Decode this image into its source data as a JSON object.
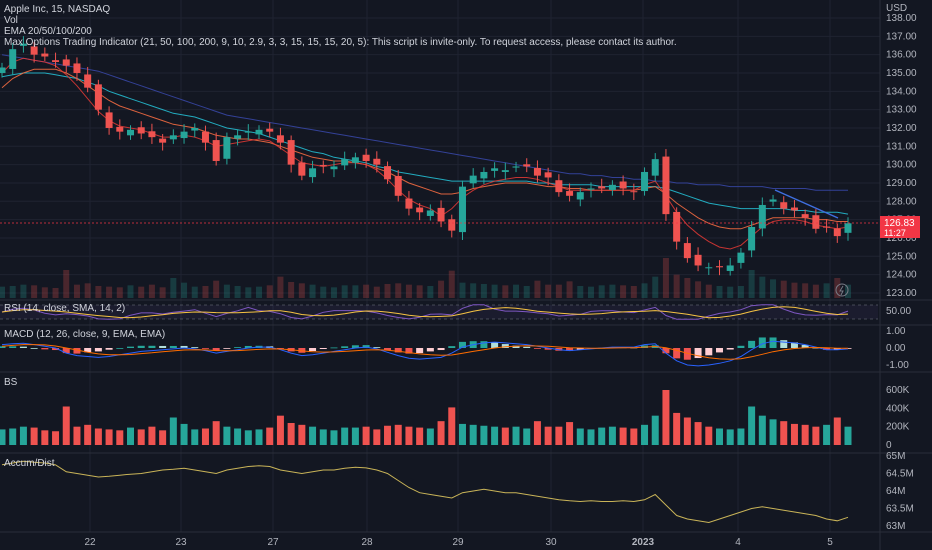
{
  "header": {
    "symbol_line": "Apple Inc, 15, NASDAQ",
    "vol_label": "Vol",
    "ema_label": "EMA 20/50/100/200",
    "indicator_label": "Max Options Trading Indicator (21, 50, 100, 200, 9, 10, 2.9, 3, 3, 15, 15, 15, 20, 5): This script is invite-only. To request access, please contact its author."
  },
  "price_axis": {
    "currency": "USD",
    "ticks": [
      "138.00",
      "137.00",
      "136.00",
      "135.00",
      "134.00",
      "133.00",
      "132.00",
      "131.00",
      "130.00",
      "129.00",
      "128.00",
      "127.00",
      "126.00",
      "125.00",
      "124.00",
      "123.00"
    ],
    "last_price": "126.83",
    "countdown": "11:27"
  },
  "panes": {
    "rsi_label": "RSI (14, close, SMA, 14, 2)",
    "rsi_tick": "50.00",
    "macd_label": "MACD (12, 26, close, 9, EMA, EMA)",
    "macd_ticks": [
      "1.00",
      "0.00",
      "-1.00"
    ],
    "bs_label": "BS",
    "bs_ticks": [
      "600K",
      "400K",
      "200K",
      "0"
    ],
    "ad_label": "Accum/Dist",
    "ad_ticks": [
      "65M",
      "64.5M",
      "64M",
      "63.5M",
      "63M"
    ]
  },
  "time_axis": [
    "22",
    "23",
    "27",
    "28",
    "29",
    "30",
    "2023",
    "4",
    "5"
  ],
  "colors": {
    "up": "#26a69a",
    "down": "#ef5350",
    "ema20": "#e53935",
    "ema50": "#ff7043",
    "ema100": "#26c6da",
    "ema200": "#3949ab",
    "price_tag": "#f23645",
    "macd_line": "#2962ff",
    "signal_line": "#ff6d00",
    "rsi_line": "#7e57c2",
    "ad_line": "#c9b458"
  },
  "chart_data": {
    "type": "candlestick",
    "symbol": "AAPL",
    "interval": "15",
    "ylim": [
      122.7,
      138.1
    ],
    "x": [
      "22",
      "23",
      "27",
      "28",
      "29",
      "30",
      "2023",
      "4",
      "5"
    ],
    "close_path": [
      135.3,
      136.3,
      136.6,
      136.0,
      135.9,
      135.6,
      135.4,
      135.0,
      134.2,
      133.0,
      132.0,
      131.8,
      131.9,
      131.7,
      131.5,
      131.2,
      131.6,
      131.8,
      132.0,
      131.2,
      130.2,
      131.5,
      131.6,
      131.8,
      131.9,
      131.8,
      131.2,
      130.0,
      129.4,
      129.8,
      129.9,
      129.9,
      130.3,
      130.4,
      130.2,
      130.0,
      129.2,
      128.3,
      127.6,
      127.4,
      127.5,
      126.9,
      126.4,
      128.8,
      129.4,
      129.6,
      129.8,
      129.7,
      129.9,
      129.9,
      129.4,
      129.3,
      128.5,
      128.3,
      128.5,
      128.7,
      128.7,
      128.9,
      128.7,
      128.5,
      129.6,
      130.3,
      127.3,
      125.8,
      124.9,
      124.5,
      124.4,
      124.4,
      124.5,
      125.2,
      126.6,
      127.8,
      128.1,
      127.6,
      127.5,
      127.1,
      126.5,
      126.6,
      126.1,
      126.8
    ],
    "ema20_path": [
      135.0,
      135.6,
      135.8,
      135.7,
      135.6,
      135.4,
      134.9,
      134.3,
      133.6,
      132.9,
      132.4,
      132.1,
      132.0,
      131.9,
      131.7,
      131.5,
      131.5,
      131.6,
      131.5,
      131.3,
      131.0,
      131.1,
      131.2,
      131.3,
      131.4,
      131.3,
      130.9,
      130.5,
      130.1,
      130.0,
      129.9,
      130.0,
      130.1,
      130.1,
      130.0,
      129.7,
      129.2,
      128.6,
      128.1,
      127.8,
      127.6,
      127.2,
      127.6,
      128.2,
      128.6,
      128.9,
      129.1,
      129.2,
      129.3,
      129.3,
      129.2,
      129.0,
      128.8,
      128.6,
      128.6,
      128.6,
      128.6,
      128.6,
      128.6,
      128.6,
      128.9,
      129.1,
      128.3,
      127.4,
      126.7,
      126.2,
      125.8,
      125.5,
      125.4,
      125.6,
      126.1,
      126.6,
      126.9,
      127.0,
      127.0,
      126.9,
      126.7,
      126.6,
      126.5,
      126.6
    ],
    "ema50_path": [
      134.2,
      134.7,
      135.0,
      135.2,
      135.2,
      135.2,
      135.0,
      134.7,
      134.3,
      133.9,
      133.5,
      133.2,
      133.0,
      132.8,
      132.6,
      132.4,
      132.2,
      132.1,
      132.0,
      131.8,
      131.6,
      131.5,
      131.4,
      131.4,
      131.3,
      131.2,
      131.0,
      130.8,
      130.6,
      130.4,
      130.3,
      130.2,
      130.2,
      130.1,
      130.0,
      129.8,
      129.6,
      129.3,
      129.0,
      128.8,
      128.6,
      128.4,
      128.4,
      128.5,
      128.7,
      128.8,
      128.9,
      129.0,
      129.0,
      129.0,
      128.9,
      128.8,
      128.8,
      128.7,
      128.7,
      128.6,
      128.6,
      128.6,
      128.6,
      128.6,
      128.7,
      128.8,
      128.4,
      127.9,
      127.5,
      127.1,
      126.8,
      126.6,
      126.5,
      126.5,
      126.7,
      126.9,
      127.1,
      127.1,
      127.1,
      127.1,
      127.0,
      127.0,
      126.9,
      126.9
    ],
    "ema100_path": [
      134.8,
      134.9,
      135.0,
      135.0,
      135.0,
      134.9,
      134.8,
      134.7,
      134.5,
      134.3,
      134.0,
      133.8,
      133.6,
      133.4,
      133.2,
      133.0,
      132.8,
      132.7,
      132.6,
      132.4,
      132.2,
      132.0,
      131.9,
      131.8,
      131.7,
      131.5,
      131.3,
      131.1,
      130.9,
      130.7,
      130.6,
      130.4,
      130.3,
      130.2,
      130.1,
      129.9,
      129.8,
      129.6,
      129.5,
      129.4,
      129.3,
      129.2,
      129.1,
      129.1,
      129.1,
      129.1,
      129.1,
      129.1,
      129.1,
      129.1,
      129.0,
      129.0,
      128.9,
      128.9,
      128.9,
      128.9,
      128.8,
      128.8,
      128.8,
      128.8,
      128.8,
      128.8,
      128.7,
      128.5,
      128.3,
      128.1,
      127.9,
      127.8,
      127.7,
      127.6,
      127.6,
      127.6,
      127.6,
      127.6,
      127.5,
      127.5,
      127.4,
      127.4,
      127.4,
      127.3
    ],
    "ema200_path": [
      136.0,
      135.9,
      135.8,
      135.7,
      135.6,
      135.5,
      135.4,
      135.3,
      135.2,
      135.1,
      134.9,
      134.7,
      134.5,
      134.3,
      134.1,
      133.9,
      133.7,
      133.5,
      133.3,
      133.1,
      132.9,
      132.7,
      132.6,
      132.5,
      132.4,
      132.3,
      132.2,
      132.1,
      132.0,
      131.9,
      131.8,
      131.7,
      131.6,
      131.5,
      131.4,
      131.3,
      131.2,
      131.1,
      131.0,
      130.9,
      130.8,
      130.7,
      130.6,
      130.5,
      130.4,
      130.3,
      130.2,
      130.1,
      130.0,
      129.9,
      129.8,
      129.7,
      129.6,
      129.5,
      129.5,
      129.4,
      129.4,
      129.3,
      129.3,
      129.2,
      129.2,
      129.1,
      129.1,
      129.0,
      129.0,
      128.9,
      128.9,
      128.9,
      128.8,
      128.8,
      128.8,
      128.8,
      128.7,
      128.7,
      128.7,
      128.7,
      128.6,
      128.6,
      128.6,
      128.6
    ],
    "volume_k_path": [
      170,
      180,
      200,
      190,
      160,
      150,
      420,
      200,
      220,
      180,
      170,
      160,
      190,
      170,
      200,
      160,
      300,
      230,
      170,
      180,
      260,
      200,
      180,
      160,
      170,
      190,
      320,
      240,
      220,
      200,
      170,
      160,
      190,
      190,
      200,
      170,
      210,
      220,
      200,
      190,
      180,
      260,
      410,
      230,
      220,
      210,
      200,
      190,
      200,
      180,
      260,
      200,
      200,
      250,
      180,
      170,
      190,
      200,
      190,
      180,
      220,
      320,
      600,
      350,
      300,
      250,
      200,
      180,
      170,
      180,
      420,
      320,
      280,
      260,
      230,
      220,
      200,
      220,
      300,
      200
    ],
    "macd_path": [
      0.2,
      0.25,
      0.28,
      0.2,
      0.1,
      0.0,
      -0.3,
      -0.45,
      -0.5,
      -0.55,
      -0.5,
      -0.4,
      -0.3,
      -0.2,
      -0.15,
      -0.1,
      -0.05,
      0.0,
      -0.05,
      -0.15,
      -0.3,
      -0.2,
      -0.1,
      0.0,
      0.05,
      0.05,
      -0.1,
      -0.3,
      -0.45,
      -0.4,
      -0.3,
      -0.2,
      -0.1,
      0.0,
      0.05,
      -0.05,
      -0.25,
      -0.45,
      -0.6,
      -0.65,
      -0.6,
      -0.55,
      -0.3,
      0.05,
      0.2,
      0.3,
      0.35,
      0.3,
      0.25,
      0.2,
      0.1,
      0.0,
      -0.1,
      -0.15,
      -0.1,
      -0.05,
      0.0,
      0.05,
      0.05,
      0.05,
      0.2,
      0.25,
      -0.3,
      -0.75,
      -1.0,
      -1.05,
      -1.0,
      -0.9,
      -0.75,
      -0.5,
      -0.1,
      0.25,
      0.4,
      0.35,
      0.3,
      0.2,
      0.05,
      -0.1,
      -0.1,
      -0.05
    ],
    "signal_path": [
      0.1,
      0.15,
      0.2,
      0.2,
      0.18,
      0.12,
      0.0,
      -0.12,
      -0.25,
      -0.35,
      -0.4,
      -0.4,
      -0.38,
      -0.33,
      -0.28,
      -0.22,
      -0.17,
      -0.12,
      -0.1,
      -0.11,
      -0.15,
      -0.16,
      -0.15,
      -0.12,
      -0.08,
      -0.05,
      -0.06,
      -0.1,
      -0.17,
      -0.22,
      -0.24,
      -0.23,
      -0.2,
      -0.16,
      -0.12,
      -0.1,
      -0.13,
      -0.19,
      -0.27,
      -0.35,
      -0.4,
      -0.43,
      -0.41,
      -0.31,
      -0.2,
      -0.1,
      0.0,
      0.07,
      0.11,
      0.13,
      0.12,
      0.1,
      0.06,
      0.02,
      0.0,
      -0.01,
      -0.01,
      0.0,
      0.01,
      0.02,
      0.05,
      0.09,
      0.01,
      -0.14,
      -0.31,
      -0.46,
      -0.57,
      -0.64,
      -0.66,
      -0.63,
      -0.52,
      -0.37,
      -0.22,
      -0.11,
      -0.03,
      0.02,
      0.03,
      0.01,
      -0.01,
      -0.02
    ],
    "ad_path": [
      64.75,
      64.8,
      64.85,
      64.82,
      64.8,
      64.75,
      64.55,
      64.5,
      64.45,
      64.4,
      64.42,
      64.45,
      64.48,
      64.5,
      64.55,
      64.6,
      64.62,
      64.65,
      64.6,
      64.55,
      64.5,
      64.6,
      64.65,
      64.7,
      64.72,
      64.7,
      64.6,
      64.55,
      64.5,
      64.55,
      64.6,
      64.6,
      64.65,
      64.68,
      64.66,
      64.6,
      64.5,
      64.3,
      64.1,
      63.95,
      63.9,
      63.85,
      63.8,
      63.95,
      64.0,
      64.05,
      64.0,
      63.95,
      63.95,
      63.9,
      63.85,
      63.8,
      63.75,
      63.72,
      63.7,
      63.72,
      63.7,
      63.7,
      63.72,
      63.7,
      63.75,
      63.9,
      63.6,
      63.3,
      63.2,
      63.15,
      63.1,
      63.2,
      63.3,
      63.4,
      63.5,
      63.55,
      63.5,
      63.45,
      63.4,
      63.35,
      63.3,
      63.2,
      63.15,
      63.25
    ]
  }
}
